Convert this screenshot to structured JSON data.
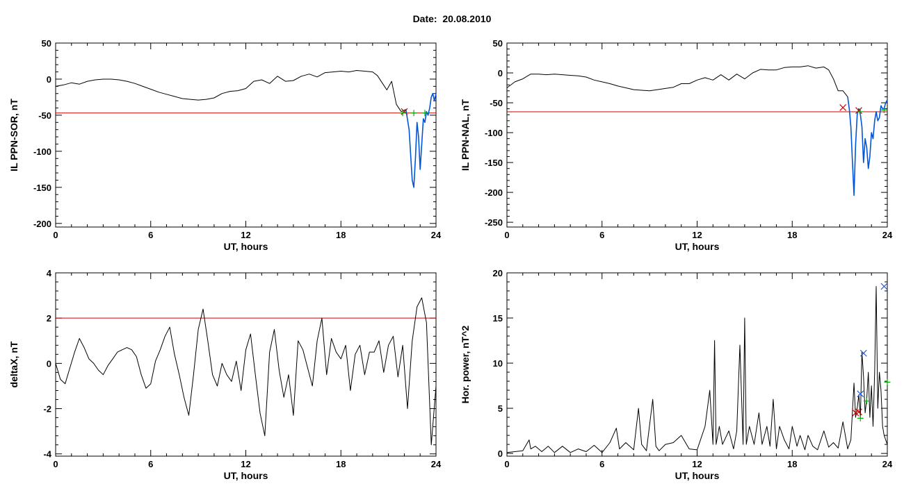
{
  "header": {
    "date_label": "Date:",
    "date_value": "20.08.2010"
  },
  "colors": {
    "axis": "#000000",
    "threshold": "#cc0000",
    "blue_trace": "#0055dd",
    "marker_green": "#00aa00",
    "marker_red": "#cc0000",
    "marker_blue": "#2255dd"
  },
  "chart_data": [
    {
      "id": "ppn-sor",
      "type": "line",
      "xlabel": "UT, hours",
      "ylabel": "IL PPN-SOR, nT",
      "xlim": [
        0,
        24
      ],
      "ylim": [
        -205,
        50
      ],
      "xticks": [
        0,
        6,
        12,
        18,
        24
      ],
      "yticks": [
        50,
        0,
        -50,
        -100,
        -150,
        -200
      ],
      "threshold": -47,
      "series": [
        {
          "color": "black",
          "x": [
            0,
            0.5,
            1,
            1.5,
            2,
            2.5,
            3,
            3.5,
            4,
            4.5,
            5,
            5.5,
            6,
            6.5,
            7,
            7.5,
            8,
            8.5,
            9,
            9.5,
            10,
            10.5,
            11,
            11.5,
            12,
            12.5,
            13,
            13.5,
            14,
            14.5,
            15,
            15.5,
            16,
            16.5,
            17,
            17.5,
            18,
            18.5,
            19,
            19.5,
            20,
            20.3,
            20.6,
            20.9,
            21.2,
            21.5,
            21.8,
            22.1
          ],
          "y": [
            -10,
            -8,
            -5,
            -7,
            -3,
            -1,
            0,
            0,
            -1,
            -3,
            -6,
            -10,
            -14,
            -18,
            -21,
            -24,
            -27,
            -28,
            -29,
            -28,
            -26,
            -20,
            -17,
            -16,
            -13,
            -3,
            -1,
            -6,
            4,
            -3,
            -2,
            4,
            7,
            3,
            9,
            10,
            11,
            10,
            12,
            11,
            10,
            5,
            -5,
            -15,
            -3,
            -35,
            -45,
            -42
          ]
        },
        {
          "color": "blue",
          "x": [
            22.1,
            22.3,
            22.5,
            22.6,
            22.7,
            22.8,
            22.9,
            23.0,
            23.1,
            23.2,
            23.3,
            23.4,
            23.5,
            23.6,
            23.7,
            23.8,
            23.9,
            24.0
          ],
          "y": [
            -42,
            -70,
            -140,
            -150,
            -110,
            -60,
            -80,
            -125,
            -90,
            -55,
            -60,
            -45,
            -50,
            -40,
            -25,
            -20,
            -30,
            -20
          ]
        }
      ],
      "markers": [
        {
          "x": 22.0,
          "y": -45,
          "color": "red",
          "symbol": "x"
        },
        {
          "x": 21.9,
          "y": -47,
          "color": "green",
          "symbol": "+"
        },
        {
          "x": 22.6,
          "y": -47,
          "color": "green",
          "symbol": "+"
        },
        {
          "x": 23.3,
          "y": -47,
          "color": "green",
          "symbol": "+"
        }
      ]
    },
    {
      "id": "ppn-nal",
      "type": "line",
      "xlabel": "UT, hours",
      "ylabel": "IL PPN-NAL, nT",
      "xlim": [
        0,
        24
      ],
      "ylim": [
        -258,
        50
      ],
      "xticks": [
        0,
        6,
        12,
        18,
        24
      ],
      "yticks": [
        50,
        0,
        -50,
        -100,
        -150,
        -200,
        -250
      ],
      "threshold": -65,
      "series": [
        {
          "color": "black",
          "x": [
            0,
            0.5,
            1,
            1.5,
            2,
            2.5,
            3,
            3.5,
            4,
            4.5,
            5,
            5.5,
            6,
            6.5,
            7,
            7.5,
            8,
            8.5,
            9,
            9.5,
            10,
            10.5,
            11,
            11.5,
            12,
            12.5,
            13,
            13.5,
            14,
            14.5,
            15,
            15.5,
            16,
            16.5,
            17,
            17.5,
            18,
            18.5,
            19,
            19.5,
            20,
            20.3,
            20.6,
            20.9,
            21.2,
            21.5
          ],
          "y": [
            -25,
            -15,
            -10,
            -2,
            -2,
            -3,
            -2,
            -3,
            -4,
            -5,
            -7,
            -12,
            -15,
            -18,
            -22,
            -25,
            -28,
            -29,
            -30,
            -28,
            -26,
            -24,
            -18,
            -18,
            -12,
            -8,
            -12,
            -3,
            -12,
            -2,
            -10,
            0,
            6,
            5,
            5,
            9,
            10,
            10,
            12,
            8,
            10,
            5,
            -10,
            -30,
            -30,
            -40
          ]
        },
        {
          "color": "blue",
          "x": [
            21.5,
            21.6,
            21.7,
            21.8,
            21.9,
            22.0,
            22.1,
            22.2,
            22.3,
            22.4,
            22.5,
            22.6,
            22.7,
            22.8,
            22.9,
            23.0,
            23.1,
            23.2,
            23.3,
            23.4,
            23.5,
            23.6,
            23.7,
            23.8,
            23.9,
            24.0
          ],
          "y": [
            -40,
            -60,
            -90,
            -150,
            -205,
            -120,
            -70,
            -60,
            -70,
            -90,
            -150,
            -110,
            -125,
            -160,
            -140,
            -100,
            -110,
            -80,
            -65,
            -80,
            -75,
            -55,
            -60,
            -60,
            -50,
            -45
          ]
        }
      ],
      "markers": [
        {
          "x": 21.2,
          "y": -58,
          "color": "red",
          "symbol": "x"
        },
        {
          "x": 22.2,
          "y": -63,
          "color": "red",
          "symbol": "x"
        },
        {
          "x": 22.3,
          "y": -65,
          "color": "green",
          "symbol": "+"
        },
        {
          "x": 23.8,
          "y": -62,
          "color": "green",
          "symbol": "+"
        }
      ]
    },
    {
      "id": "deltax",
      "type": "line",
      "xlabel": "UT, hours",
      "ylabel": "deltaX, nT",
      "xlim": [
        0,
        24
      ],
      "ylim": [
        -4.1,
        4.0
      ],
      "xticks": [
        0,
        6,
        12,
        18,
        24
      ],
      "yticks": [
        4,
        2,
        0,
        -2,
        -4
      ],
      "threshold": 2.0,
      "series": [
        {
          "color": "black",
          "x": [
            0,
            0.3,
            0.6,
            0.9,
            1.2,
            1.5,
            1.8,
            2.1,
            2.4,
            2.7,
            3.0,
            3.3,
            3.6,
            3.9,
            4.2,
            4.5,
            4.8,
            5.1,
            5.4,
            5.7,
            6.0,
            6.3,
            6.6,
            6.9,
            7.2,
            7.5,
            7.8,
            8.1,
            8.4,
            8.7,
            9.0,
            9.3,
            9.6,
            9.9,
            10.2,
            10.5,
            10.8,
            11.1,
            11.4,
            11.7,
            12.0,
            12.3,
            12.6,
            12.9,
            13.2,
            13.5,
            13.8,
            14.1,
            14.4,
            14.7,
            15.0,
            15.3,
            15.6,
            15.9,
            16.2,
            16.5,
            16.8,
            17.1,
            17.4,
            17.7,
            18.0,
            18.3,
            18.6,
            18.9,
            19.2,
            19.5,
            19.8,
            20.1,
            20.4,
            20.7,
            21.0,
            21.3,
            21.6,
            21.9,
            22.2,
            22.5,
            22.8,
            23.1,
            23.4,
            23.7,
            24.0
          ],
          "y": [
            0.0,
            -0.7,
            -0.9,
            -0.2,
            0.5,
            1.1,
            0.7,
            0.2,
            0.0,
            -0.3,
            -0.5,
            -0.1,
            0.2,
            0.5,
            0.6,
            0.7,
            0.6,
            0.3,
            -0.5,
            -1.1,
            -0.9,
            0.1,
            0.6,
            1.2,
            1.6,
            0.4,
            -0.5,
            -1.5,
            -2.3,
            -0.5,
            1.5,
            2.4,
            1.0,
            -0.5,
            -1.0,
            0.0,
            -0.5,
            -0.8,
            0.1,
            -1.2,
            0.6,
            1.3,
            -0.5,
            -2.2,
            -3.2,
            0.5,
            1.5,
            -0.3,
            -1.5,
            -0.5,
            -2.3,
            1.0,
            0.6,
            -0.2,
            -1.0,
            1.0,
            2.0,
            -0.5,
            1.1,
            0.5,
            0.2,
            0.8,
            -1.2,
            0.4,
            0.8,
            -0.5,
            0.5,
            0.5,
            1.0,
            -0.4,
            0.8,
            1.2,
            -0.6,
            0.8,
            -2.0,
            1.0,
            2.5,
            2.9,
            1.8,
            -3.6,
            -1.0
          ]
        }
      ],
      "markers": []
    },
    {
      "id": "hor-power",
      "type": "line",
      "xlabel": "UT, hours",
      "ylabel": "Hor. power, nT^2",
      "xlim": [
        0,
        24
      ],
      "ylim": [
        -0.3,
        20
      ],
      "xticks": [
        0,
        6,
        12,
        18,
        24
      ],
      "yticks": [
        20,
        15,
        10,
        5,
        0
      ],
      "threshold": null,
      "series": [
        {
          "color": "black",
          "x": [
            0,
            0.5,
            1,
            1.4,
            1.5,
            1.8,
            2.2,
            2.6,
            3,
            3.5,
            4,
            4.5,
            5,
            5.5,
            6,
            6.5,
            6.9,
            7.1,
            7.5,
            8,
            8.3,
            8.5,
            8.8,
            9.2,
            9.4,
            9.6,
            10,
            10.5,
            11,
            11.5,
            12,
            12.5,
            12.8,
            13.0,
            13.1,
            13.2,
            13.4,
            13.6,
            14,
            14.3,
            14.5,
            14.7,
            14.9,
            15.0,
            15.1,
            15.3,
            15.6,
            15.9,
            16.1,
            16.4,
            16.6,
            16.8,
            17.0,
            17.2,
            17.5,
            17.8,
            18.0,
            18.3,
            18.5,
            18.8,
            19.0,
            19.3,
            19.6,
            20.0,
            20.3,
            20.6,
            20.9,
            21.2,
            21.5,
            21.7,
            21.9,
            22.0,
            22.1,
            22.2,
            22.3,
            22.4,
            22.5,
            22.6,
            22.7,
            22.8,
            22.9,
            23.0,
            23.1,
            23.2,
            23.3,
            23.4,
            23.5,
            23.6,
            23.7,
            23.8,
            24.0
          ],
          "y": [
            0.1,
            0.2,
            0.3,
            1.5,
            0.5,
            0.8,
            0.2,
            0.8,
            0.1,
            0.8,
            0.1,
            0.5,
            0.2,
            0.9,
            0.1,
            1.2,
            2.8,
            0.5,
            1.2,
            0.4,
            5.0,
            1.0,
            0.3,
            6.0,
            0.8,
            0.3,
            1.0,
            1.2,
            2.0,
            0.5,
            0.4,
            3.0,
            7.0,
            1.0,
            12.5,
            1.0,
            3.0,
            1.0,
            2.5,
            0.5,
            2.5,
            12.0,
            1.0,
            15.0,
            1.0,
            3.0,
            1.0,
            4.5,
            1.0,
            3.0,
            0.8,
            6.0,
            0.5,
            3.0,
            1.5,
            0.5,
            3.0,
            0.8,
            2.0,
            0.4,
            2.0,
            0.8,
            0.4,
            2.5,
            0.7,
            1.2,
            0.6,
            3.5,
            0.5,
            1.5,
            7.8,
            4.0,
            5.0,
            6.5,
            4.0,
            11.2,
            8.5,
            4.5,
            6.0,
            9.0,
            4.0,
            7.5,
            3.0,
            9.0,
            18.5,
            5.0,
            9.0,
            7.0,
            3.0,
            2.0,
            1.0
          ]
        }
      ],
      "markers": [
        {
          "x": 22.2,
          "y": 4.6,
          "color": "red",
          "symbol": "x"
        },
        {
          "x": 22.0,
          "y": 4.5,
          "color": "red",
          "symbol": "x"
        },
        {
          "x": 22.3,
          "y": 6.6,
          "color": "blue",
          "symbol": "x"
        },
        {
          "x": 22.5,
          "y": 11.1,
          "color": "blue",
          "symbol": "x"
        },
        {
          "x": 23.8,
          "y": 18.5,
          "color": "blue",
          "symbol": "x"
        },
        {
          "x": 22.7,
          "y": 5.8,
          "color": "green",
          "symbol": "+"
        },
        {
          "x": 22.3,
          "y": 3.9,
          "color": "green",
          "symbol": "+"
        },
        {
          "x": 24.0,
          "y": 7.9,
          "color": "green",
          "symbol": "+"
        }
      ]
    }
  ]
}
